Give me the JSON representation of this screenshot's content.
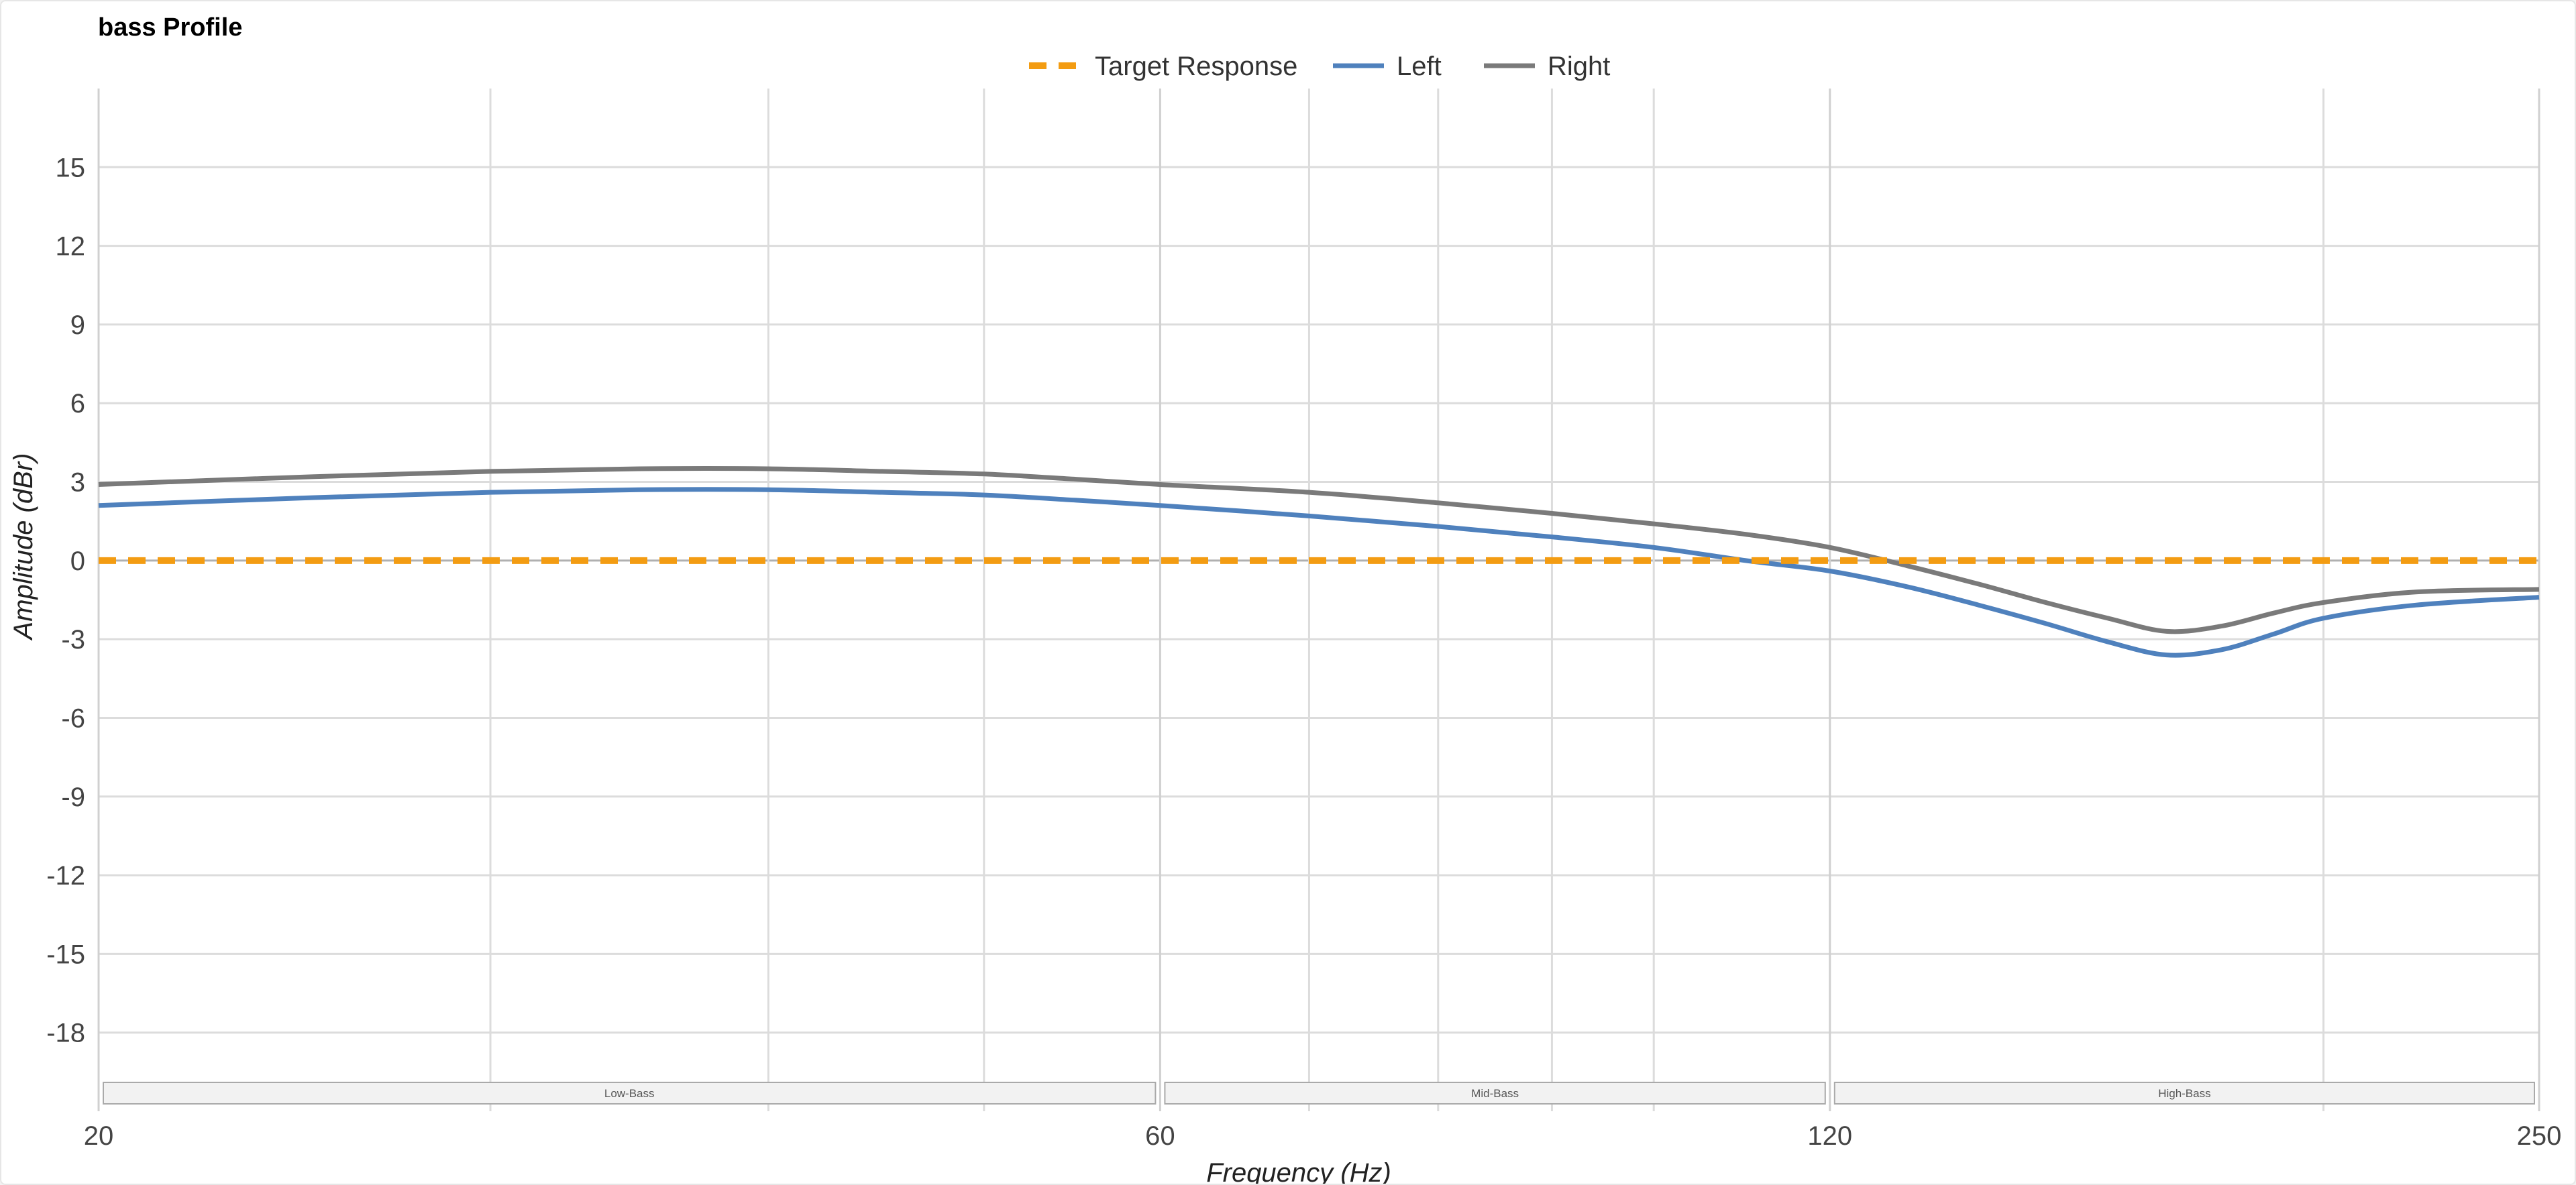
{
  "chart_data": {
    "type": "line",
    "title": "bass Profile",
    "xlabel": "Frequency (Hz)",
    "ylabel": "Amplitude (dBr)",
    "x_scale": "log",
    "xlim": [
      20,
      250
    ],
    "ylim": [
      -21,
      18
    ],
    "x_ticks": [
      20,
      60,
      120,
      250
    ],
    "x_tick_labels": [
      "20",
      "60",
      "120",
      "250"
    ],
    "x_minor_gridlines": [
      30,
      40,
      50,
      70,
      80,
      90,
      100,
      200
    ],
    "y_ticks": [
      -18,
      -15,
      -12,
      -9,
      -6,
      -3,
      0,
      3,
      6,
      9,
      12,
      15
    ],
    "y_tick_labels": [
      "-18",
      "-15",
      "-12",
      "-9",
      "-6",
      "-3",
      "0",
      "3",
      "6",
      "9",
      "12",
      "15"
    ],
    "grid": true,
    "legend_position": "top-center",
    "bands": [
      {
        "label": "Low-Bass",
        "from": 20,
        "to": 60
      },
      {
        "label": "Mid-Bass",
        "from": 60,
        "to": 120
      },
      {
        "label": "High-Bass",
        "from": 120,
        "to": 250
      }
    ],
    "series": [
      {
        "name": "Target Response",
        "color": "#f39c12",
        "dashed": true,
        "x": [
          20,
          250
        ],
        "y": [
          0,
          0
        ]
      },
      {
        "name": "Left",
        "color": "#4f81bd",
        "dashed": false,
        "x": [
          20,
          25,
          30,
          35,
          40,
          45,
          50,
          55,
          60,
          70,
          80,
          90,
          100,
          110,
          120,
          130,
          140,
          150,
          160,
          170,
          180,
          190,
          200,
          220,
          250
        ],
        "y": [
          2.1,
          2.4,
          2.6,
          2.7,
          2.7,
          2.6,
          2.5,
          2.3,
          2.1,
          1.7,
          1.3,
          0.9,
          0.5,
          0.0,
          -0.4,
          -1.0,
          -1.7,
          -2.4,
          -3.1,
          -3.6,
          -3.4,
          -2.8,
          -2.2,
          -1.7,
          -1.4
        ]
      },
      {
        "name": "Right",
        "color": "#7a7a7a",
        "dashed": false,
        "x": [
          20,
          25,
          30,
          35,
          40,
          45,
          50,
          55,
          60,
          70,
          80,
          90,
          100,
          110,
          120,
          130,
          140,
          150,
          160,
          170,
          180,
          190,
          200,
          220,
          250
        ],
        "y": [
          2.9,
          3.2,
          3.4,
          3.5,
          3.5,
          3.4,
          3.3,
          3.1,
          2.9,
          2.6,
          2.2,
          1.8,
          1.4,
          1.0,
          0.5,
          -0.2,
          -0.9,
          -1.6,
          -2.2,
          -2.7,
          -2.5,
          -2.0,
          -1.6,
          -1.2,
          -1.1
        ]
      }
    ]
  }
}
